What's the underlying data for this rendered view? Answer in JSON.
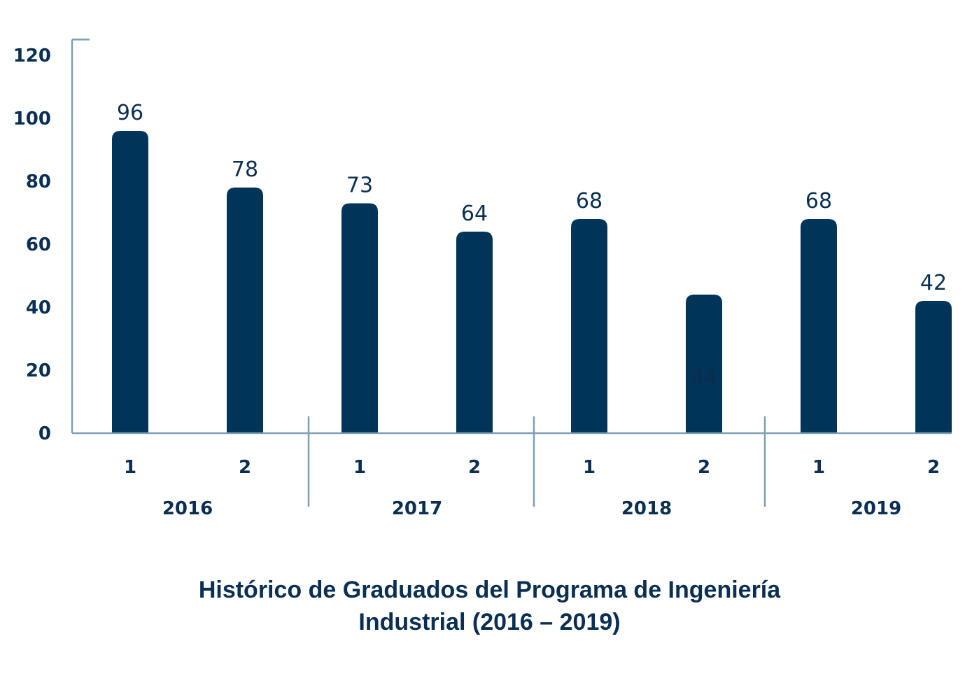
{
  "chart_data": {
    "type": "bar",
    "title": "Histórico de Graduados del Programa de Ingeniería Industrial (2016 – 2019)",
    "title_lines": [
      "Histórico de Graduados del Programa de Ingeniería",
      "Industrial (2016 – 2019)"
    ],
    "xlabel": "",
    "ylabel": "",
    "ylim": [
      0,
      125
    ],
    "yticks": [
      0,
      20,
      40,
      60,
      80,
      100,
      120
    ],
    "grid": false,
    "groups": [
      "2016",
      "2017",
      "2018",
      "2019"
    ],
    "categories": [
      "1",
      "2",
      "1",
      "2",
      "1",
      "2",
      "1",
      "2"
    ],
    "group_of_category": [
      "2016",
      "2016",
      "2017",
      "2017",
      "2018",
      "2018",
      "2019",
      "2019"
    ],
    "values": [
      96,
      78,
      73,
      64,
      68,
      44,
      68,
      42
    ],
    "data_labels": [
      "96",
      "78",
      "73",
      "64",
      "68",
      "44",
      "68",
      "42"
    ],
    "bar_color": "#003459",
    "axis_color": "#7f9fb2",
    "text_color": "#0a2f52"
  }
}
